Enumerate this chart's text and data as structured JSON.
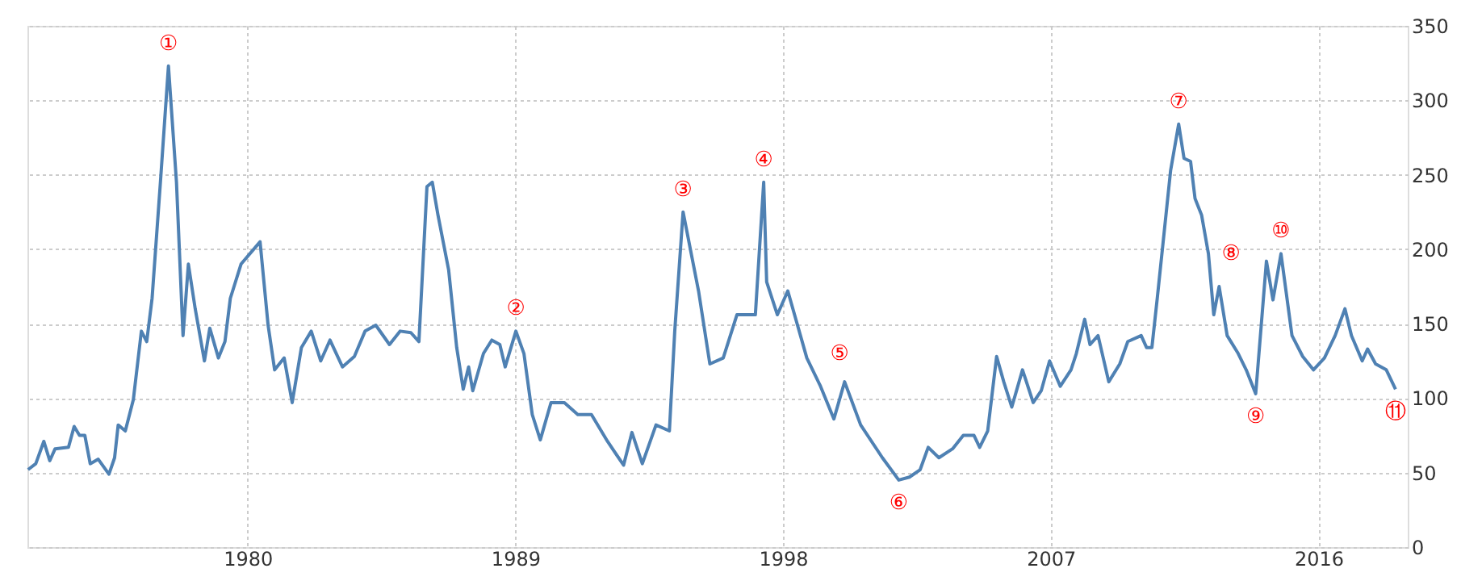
{
  "chart_data": {
    "type": "line",
    "x": [
      1972.62,
      1972.88,
      1973.15,
      1973.35,
      1973.53,
      1973.98,
      1974.17,
      1974.35,
      1974.53,
      1974.71,
      1974.98,
      1975.34,
      1975.53,
      1975.65,
      1975.89,
      1976.16,
      1976.43,
      1976.61,
      1976.79,
      1977.07,
      1977.34,
      1977.61,
      1977.83,
      1978.01,
      1978.24,
      1978.55,
      1978.73,
      1979.02,
      1979.24,
      1979.42,
      1979.78,
      1980.42,
      1980.69,
      1980.91,
      1981.23,
      1981.5,
      1981.81,
      1982.14,
      1982.46,
      1982.77,
      1983.19,
      1983.59,
      1983.95,
      1984.31,
      1984.77,
      1985.13,
      1985.49,
      1985.76,
      1986.03,
      1986.21,
      1986.4,
      1986.76,
      1987.03,
      1987.25,
      1987.43,
      1987.57,
      1987.93,
      1988.21,
      1988.48,
      1988.66,
      1989.02,
      1989.29,
      1989.57,
      1989.84,
      1990.2,
      1990.65,
      1991.1,
      1991.56,
      1992.1,
      1992.64,
      1992.92,
      1993.27,
      1993.73,
      1994.18,
      1994.36,
      1994.64,
      1995.16,
      1995.54,
      1995.99,
      1996.45,
      1997.07,
      1997.35,
      1997.45,
      1997.81,
      1998.16,
      1998.8,
      1999.26,
      1999.71,
      2000.07,
      2000.61,
      2001.34,
      2001.89,
      2002.25,
      2002.61,
      2002.88,
      2003.24,
      2003.7,
      2004.06,
      2004.42,
      2004.61,
      2004.88,
      2005.18,
      2005.42,
      2005.69,
      2006.05,
      2006.41,
      2006.68,
      2006.96,
      2007.32,
      2007.68,
      2007.86,
      2008.14,
      2008.32,
      2008.59,
      2008.95,
      2009.32,
      2009.59,
      2010.04,
      2010.22,
      2010.4,
      2010.58,
      2011.03,
      2011.3,
      2011.48,
      2011.7,
      2011.85,
      2012.07,
      2012.3,
      2012.48,
      2012.66,
      2012.93,
      2013.3,
      2013.57,
      2013.89,
      2014.25,
      2014.47,
      2014.74,
      2015.11,
      2015.47,
      2015.83,
      2016.2,
      2016.56,
      2016.89,
      2017.11,
      2017.47,
      2017.65,
      2017.92,
      2018.28,
      2018.59
    ],
    "series": [
      {
        "color": "#4f81b3",
        "values": [
          52,
          56,
          71,
          58,
          66,
          67,
          81,
          75,
          75,
          56,
          59,
          49,
          60,
          82,
          78,
          99,
          145,
          138,
          167,
          245,
          323,
          245,
          142,
          190,
          160,
          125,
          147,
          127,
          138,
          167,
          190,
          205,
          149,
          119,
          127,
          97,
          134,
          145,
          125,
          139,
          121,
          128,
          145,
          149,
          136,
          145,
          144,
          138,
          242,
          245,
          223,
          186,
          134,
          106,
          121,
          105,
          130,
          139,
          136,
          121,
          145,
          130,
          89,
          72,
          97,
          97,
          89,
          89,
          71,
          55,
          77,
          56,
          82,
          78,
          145,
          225,
          172,
          123,
          127,
          156,
          156,
          245,
          178,
          156,
          172,
          127,
          108,
          86,
          111,
          82,
          60,
          45,
          47,
          52,
          67,
          60,
          66,
          75,
          75,
          67,
          78,
          128,
          111,
          94,
          119,
          97,
          105,
          125,
          108,
          119,
          130,
          153,
          136,
          142,
          111,
          123,
          138,
          142,
          134,
          134,
          167,
          253,
          284,
          261,
          259,
          234,
          223,
          197,
          156,
          175,
          142,
          130,
          119,
          103,
          192,
          166,
          197,
          142,
          128,
          119,
          127,
          142,
          160,
          142,
          125,
          133,
          123,
          119,
          106
        ]
      }
    ],
    "xlim": [
      1972.6,
      2019.0
    ],
    "xticks": [
      1980,
      1989,
      1998,
      2007,
      2016
    ],
    "ylim": [
      0,
      350
    ],
    "yticks": [
      0,
      50,
      100,
      150,
      200,
      250,
      300,
      350
    ],
    "grid": true,
    "line_style": "solid",
    "marker": "none",
    "annotations": [
      {
        "text": "①",
        "x": 1977.34,
        "y": 323
      },
      {
        "text": "②",
        "x": 1989.02,
        "y": 145
      },
      {
        "text": "③",
        "x": 1994.64,
        "y": 225
      },
      {
        "text": "④",
        "x": 1997.35,
        "y": 245
      },
      {
        "text": "⑤",
        "x": 1999.9,
        "y": 115
      },
      {
        "text": "⑥",
        "x": 2001.89,
        "y": 45
      },
      {
        "text": "⑦",
        "x": 2011.3,
        "y": 284
      },
      {
        "text": "⑧",
        "x": 2012.3,
        "y": 197
      },
      {
        "text": "⑨",
        "x": 2013.89,
        "y": 103
      },
      {
        "text": "⑩",
        "x": 2014.74,
        "y": 197
      },
      {
        "text": "⑪",
        "x": 2018.59,
        "y": 106
      }
    ]
  }
}
